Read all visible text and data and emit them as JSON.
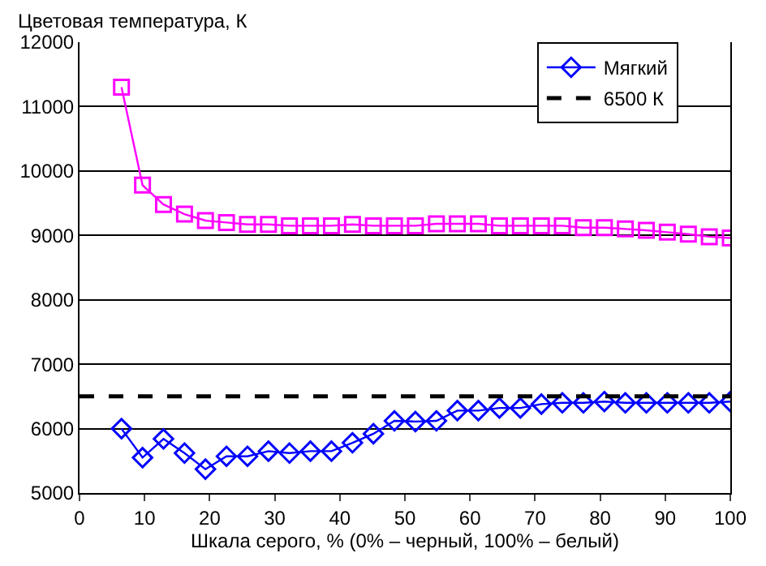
{
  "chart_data": {
    "type": "line",
    "ylabel": "Цветовая температура, К",
    "xlabel": "Шкала серого, % (0% – черный, 100% – белый)",
    "x": [
      6.45,
      9.68,
      12.9,
      16.13,
      19.35,
      22.58,
      25.81,
      29.03,
      32.26,
      35.48,
      38.71,
      41.94,
      45.16,
      48.39,
      51.61,
      54.84,
      58.06,
      61.29,
      64.52,
      67.74,
      70.97,
      74.19,
      77.42,
      80.65,
      83.87,
      87.1,
      90.32,
      93.55,
      96.77,
      100
    ],
    "series": [
      {
        "color": "#ff00ff",
        "marker": "square",
        "values": [
          11300,
          9780,
          9480,
          9330,
          9230,
          9200,
          9170,
          9170,
          9150,
          9150,
          9150,
          9170,
          9150,
          9150,
          9150,
          9180,
          9180,
          9180,
          9150,
          9150,
          9150,
          9150,
          9120,
          9120,
          9100,
          9080,
          9050,
          9020,
          8980,
          8960
        ]
      },
      {
        "name": "Мягкий",
        "color": "#0000ff",
        "marker": "diamond",
        "values": [
          6000,
          5550,
          5840,
          5620,
          5370,
          5570,
          5570,
          5650,
          5620,
          5650,
          5650,
          5780,
          5920,
          6120,
          6110,
          6120,
          6280,
          6280,
          6320,
          6320,
          6380,
          6400,
          6400,
          6420,
          6400,
          6400,
          6400,
          6400,
          6400,
          6420
        ]
      }
    ],
    "ref_lines": [
      {
        "axis": "y",
        "value": 6500,
        "label": "6500 К",
        "color": "#000000",
        "line_style": "dashed"
      }
    ],
    "xlim": [
      0,
      100
    ],
    "xticks": [
      0,
      10,
      20,
      30,
      40,
      50,
      60,
      70,
      80,
      90,
      100
    ],
    "ylim": [
      5000,
      12000
    ],
    "yticks": [
      5000,
      6000,
      7000,
      8000,
      9000,
      10000,
      11000,
      12000
    ],
    "grid": "y",
    "legend": "top right",
    "line_style": "solid"
  }
}
